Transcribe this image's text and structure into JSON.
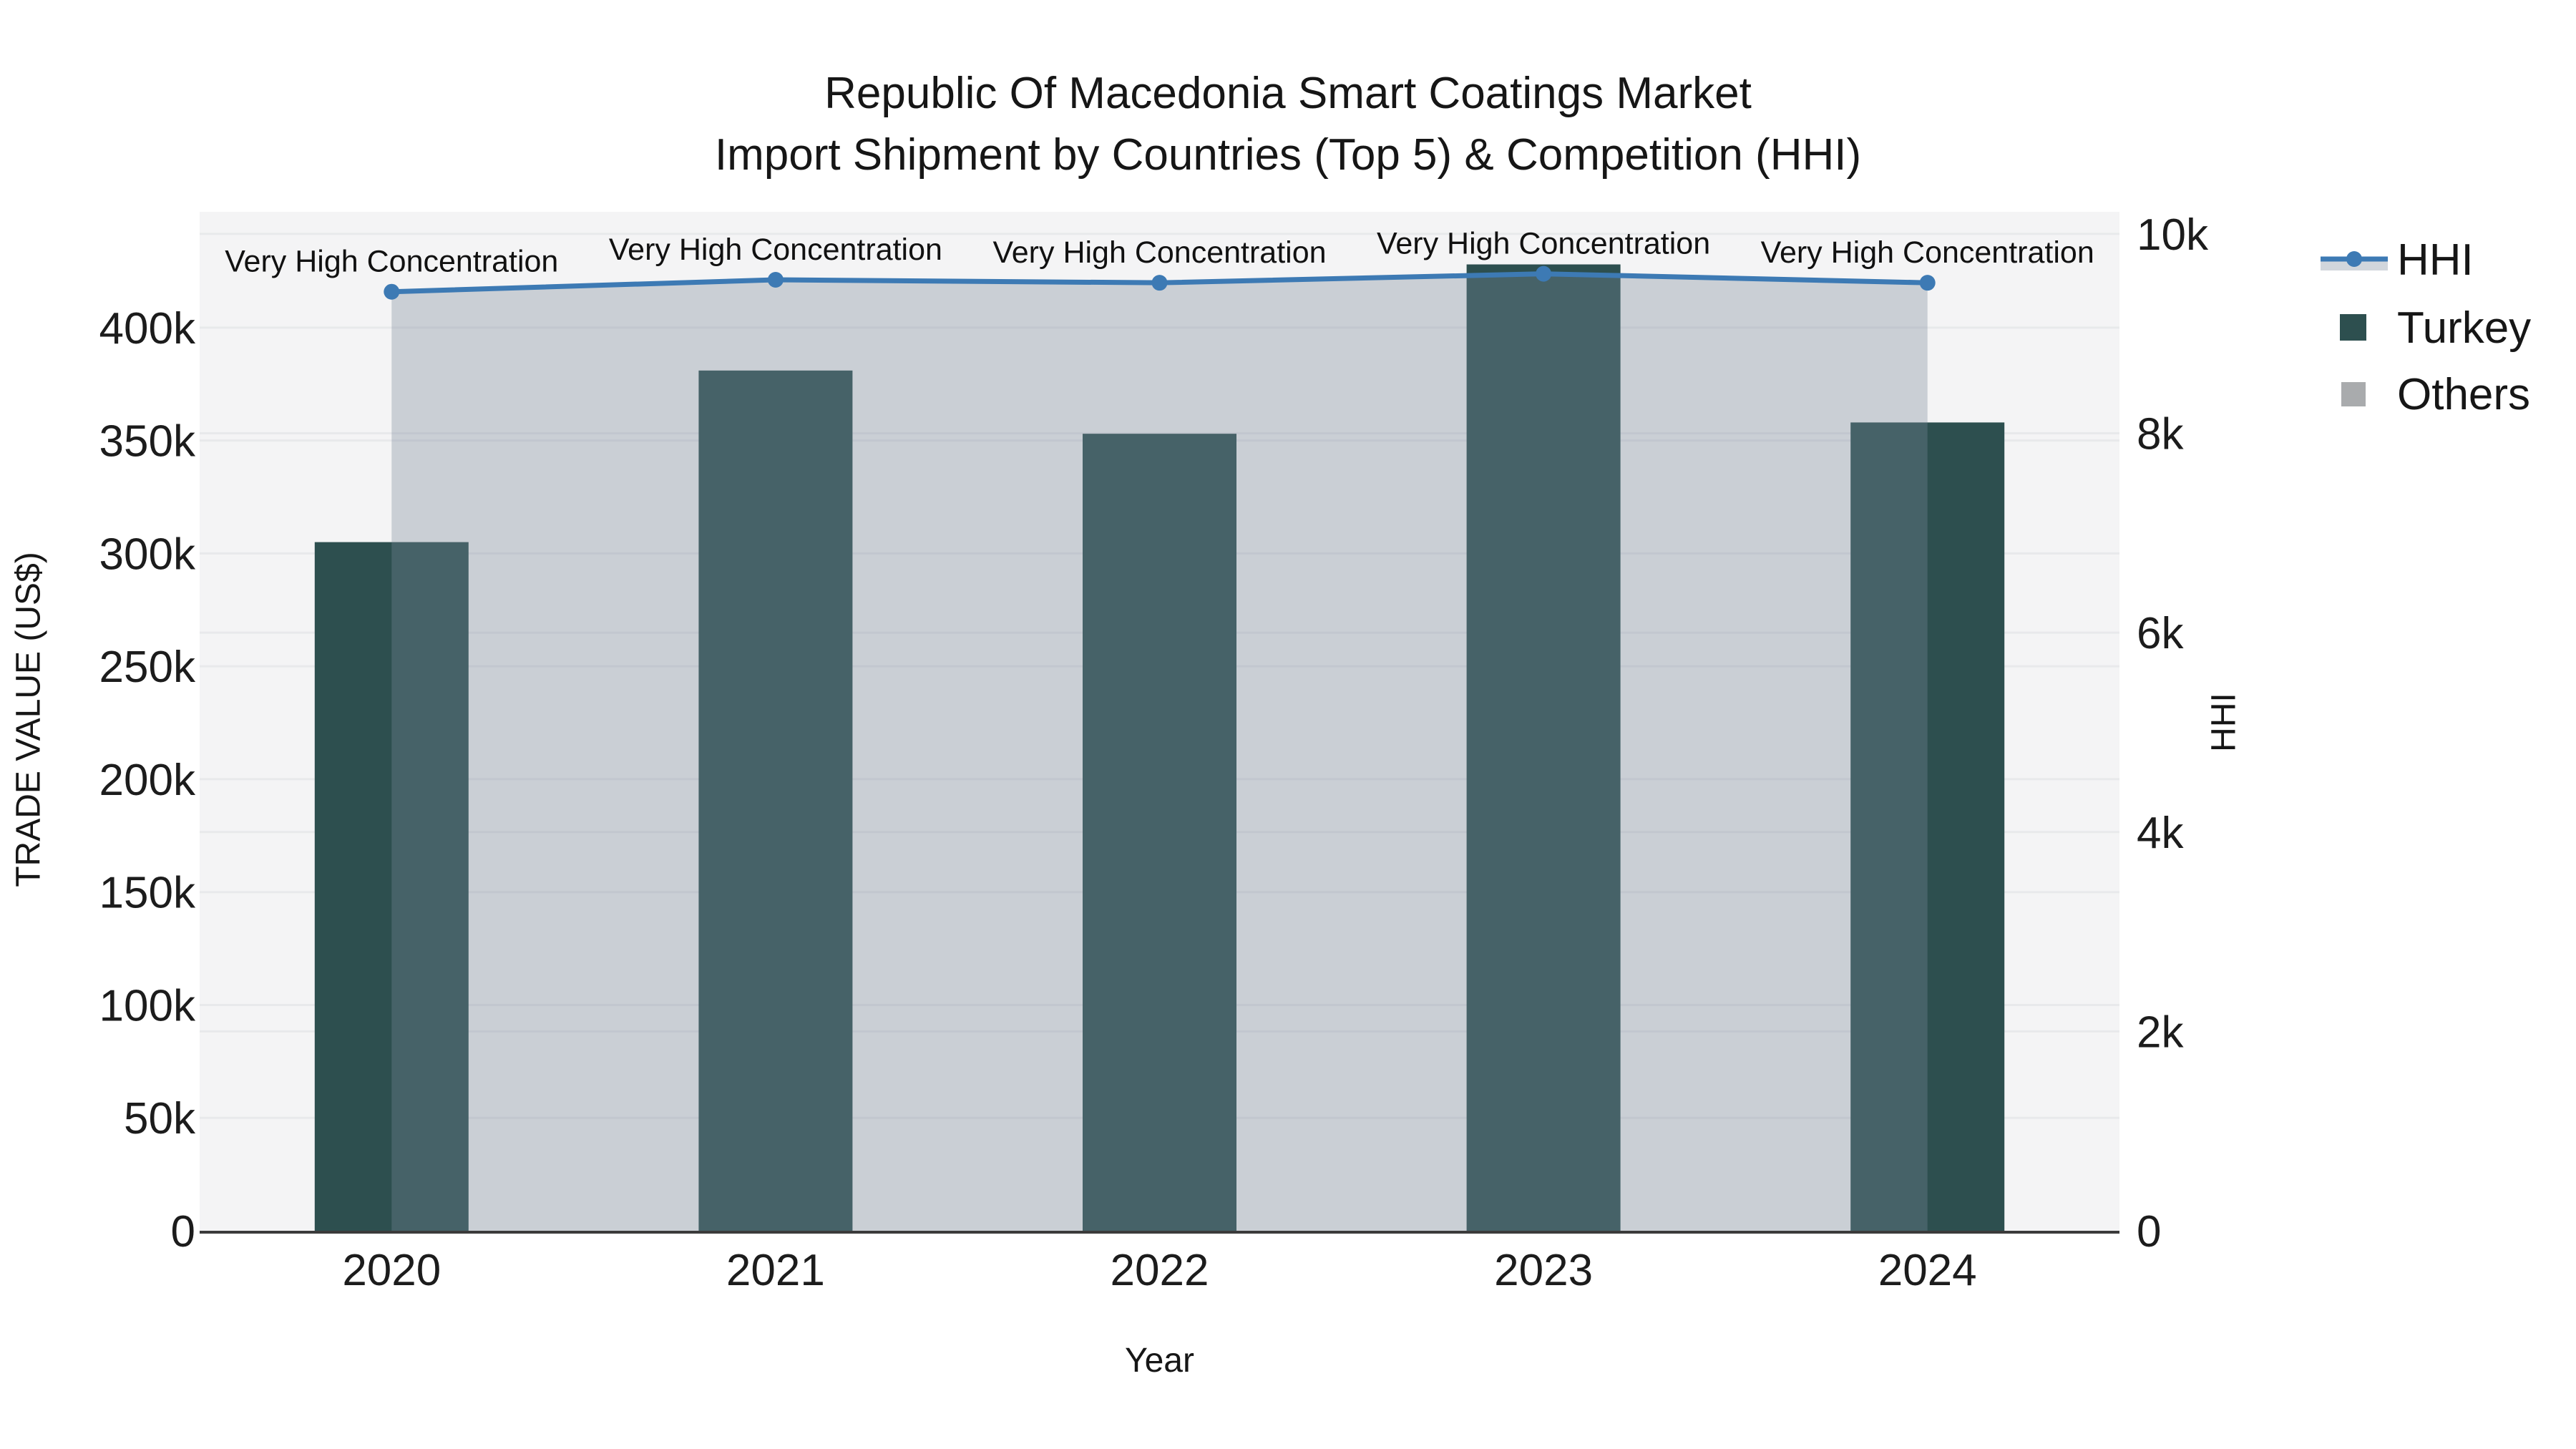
{
  "chart_data": {
    "type": "combo-bar-line-area",
    "title_line1": "Republic Of Macedonia Smart Coatings Market",
    "title_line2": "Import Shipment by Countries (Top 5) & Competition (HHI)",
    "x": {
      "label": "Year",
      "categories": [
        "2020",
        "2021",
        "2022",
        "2023",
        "2024"
      ]
    },
    "y_left": {
      "label": "TRADE VALUE (US$)",
      "tick_labels": [
        "0",
        "50k",
        "100k",
        "150k",
        "200k",
        "250k",
        "300k",
        "350k",
        "400k"
      ],
      "tick_values": [
        0,
        50000,
        100000,
        150000,
        200000,
        250000,
        300000,
        350000,
        400000
      ],
      "max": 451300
    },
    "y_right": {
      "label": "HHI",
      "tick_labels": [
        "0",
        "2k",
        "4k",
        "6k",
        "8k",
        "10k"
      ],
      "tick_values": [
        0,
        2000,
        4000,
        6000,
        8000,
        10000
      ],
      "max": 10222
    },
    "series": [
      {
        "name": "Turkey",
        "type": "bar",
        "axis": "left",
        "color": "#2D4F4F",
        "values": [
          305000,
          381000,
          353000,
          428000,
          358000
        ]
      },
      {
        "name": "Others",
        "type": "bar",
        "axis": "left",
        "color": "#A9ABAD",
        "values": [
          0,
          0,
          0,
          0,
          0
        ]
      },
      {
        "name": "HHI",
        "type": "line-area",
        "axis": "right",
        "color": "#3D7AB4",
        "fill": "rgba(119,136,153,0.34)",
        "values": [
          9420,
          9540,
          9510,
          9600,
          9510
        ]
      }
    ],
    "annotations": [
      {
        "x_index": 0,
        "text": "Very High Concentration"
      },
      {
        "x_index": 1,
        "text": "Very High Concentration"
      },
      {
        "x_index": 2,
        "text": "Very High Concentration"
      },
      {
        "x_index": 3,
        "text": "Very High Concentration"
      },
      {
        "x_index": 4,
        "text": "Very High Concentration"
      }
    ],
    "legend": [
      {
        "label": "HHI",
        "swatch": "line-area-marker"
      },
      {
        "label": "Turkey",
        "swatch": "square"
      },
      {
        "label": "Others",
        "swatch": "square"
      }
    ],
    "style": {
      "plot_bg": "#F4F4F5",
      "grid_color": "#E8E9EB",
      "axis_line_color": "#3B3B3B",
      "text_color": "#1c1c1c",
      "hhi_line_color": "#3D7AB4",
      "hhi_fill_color": "rgba(119,136,153,0.34)",
      "turkey_color": "#2D4F4F",
      "others_color": "#A9ABAD"
    }
  }
}
